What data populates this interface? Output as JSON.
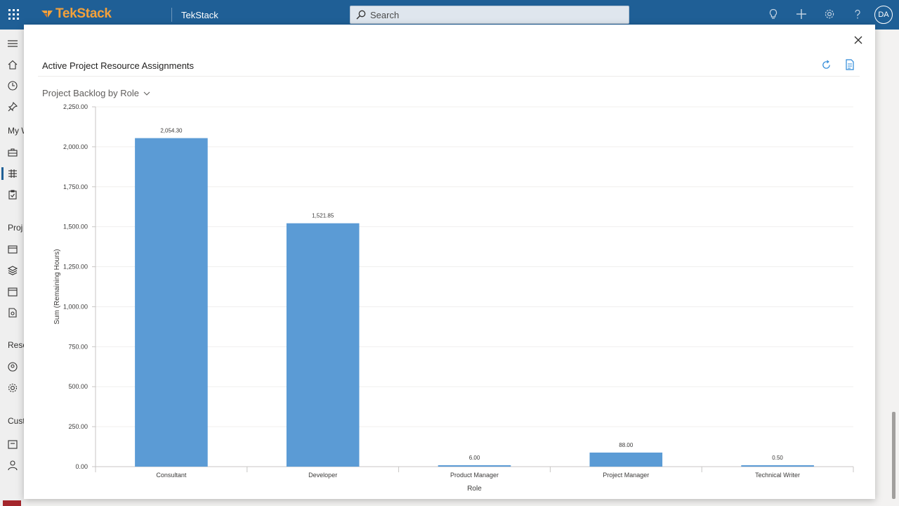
{
  "header": {
    "brand": "TekStack",
    "app_title": "TekStack",
    "search_placeholder": "Search",
    "user_initials": "DA",
    "colors": {
      "bar": "#1f5f96",
      "brand_accent": "#f4a13a"
    }
  },
  "nav": {
    "section_labels": [
      "My W",
      "Proj",
      "Reso",
      "Cust"
    ]
  },
  "dialog": {
    "title": "Active Project Resource Assignments",
    "view_label": "Project Backlog by Role",
    "icons": [
      "refresh-icon",
      "export-icon",
      "close-icon"
    ]
  },
  "chart_data": {
    "type": "bar",
    "categories": [
      "Consultant",
      "Developer",
      "Product Manager",
      "Project Manager",
      "Technical Writer"
    ],
    "values": [
      2054.3,
      1521.85,
      6.0,
      88.0,
      0.5
    ],
    "value_labels": [
      "2,054.30",
      "1,521.85",
      "6.00",
      "88.00",
      "0.50"
    ],
    "xlabel": "Role",
    "ylabel": "Sum (Remaining Hours)",
    "ylim": [
      0,
      2250
    ],
    "yticks": [
      0,
      250,
      500,
      750,
      1000,
      1250,
      1500,
      1750,
      2000,
      2250
    ],
    "ytick_labels": [
      "0.00",
      "250.00",
      "500.00",
      "750.00",
      "1,000.00",
      "1,250.00",
      "1,500.00",
      "1,750.00",
      "2,000.00",
      "2,250.00"
    ],
    "grid": true,
    "bar_color": "#5b9bd5"
  }
}
